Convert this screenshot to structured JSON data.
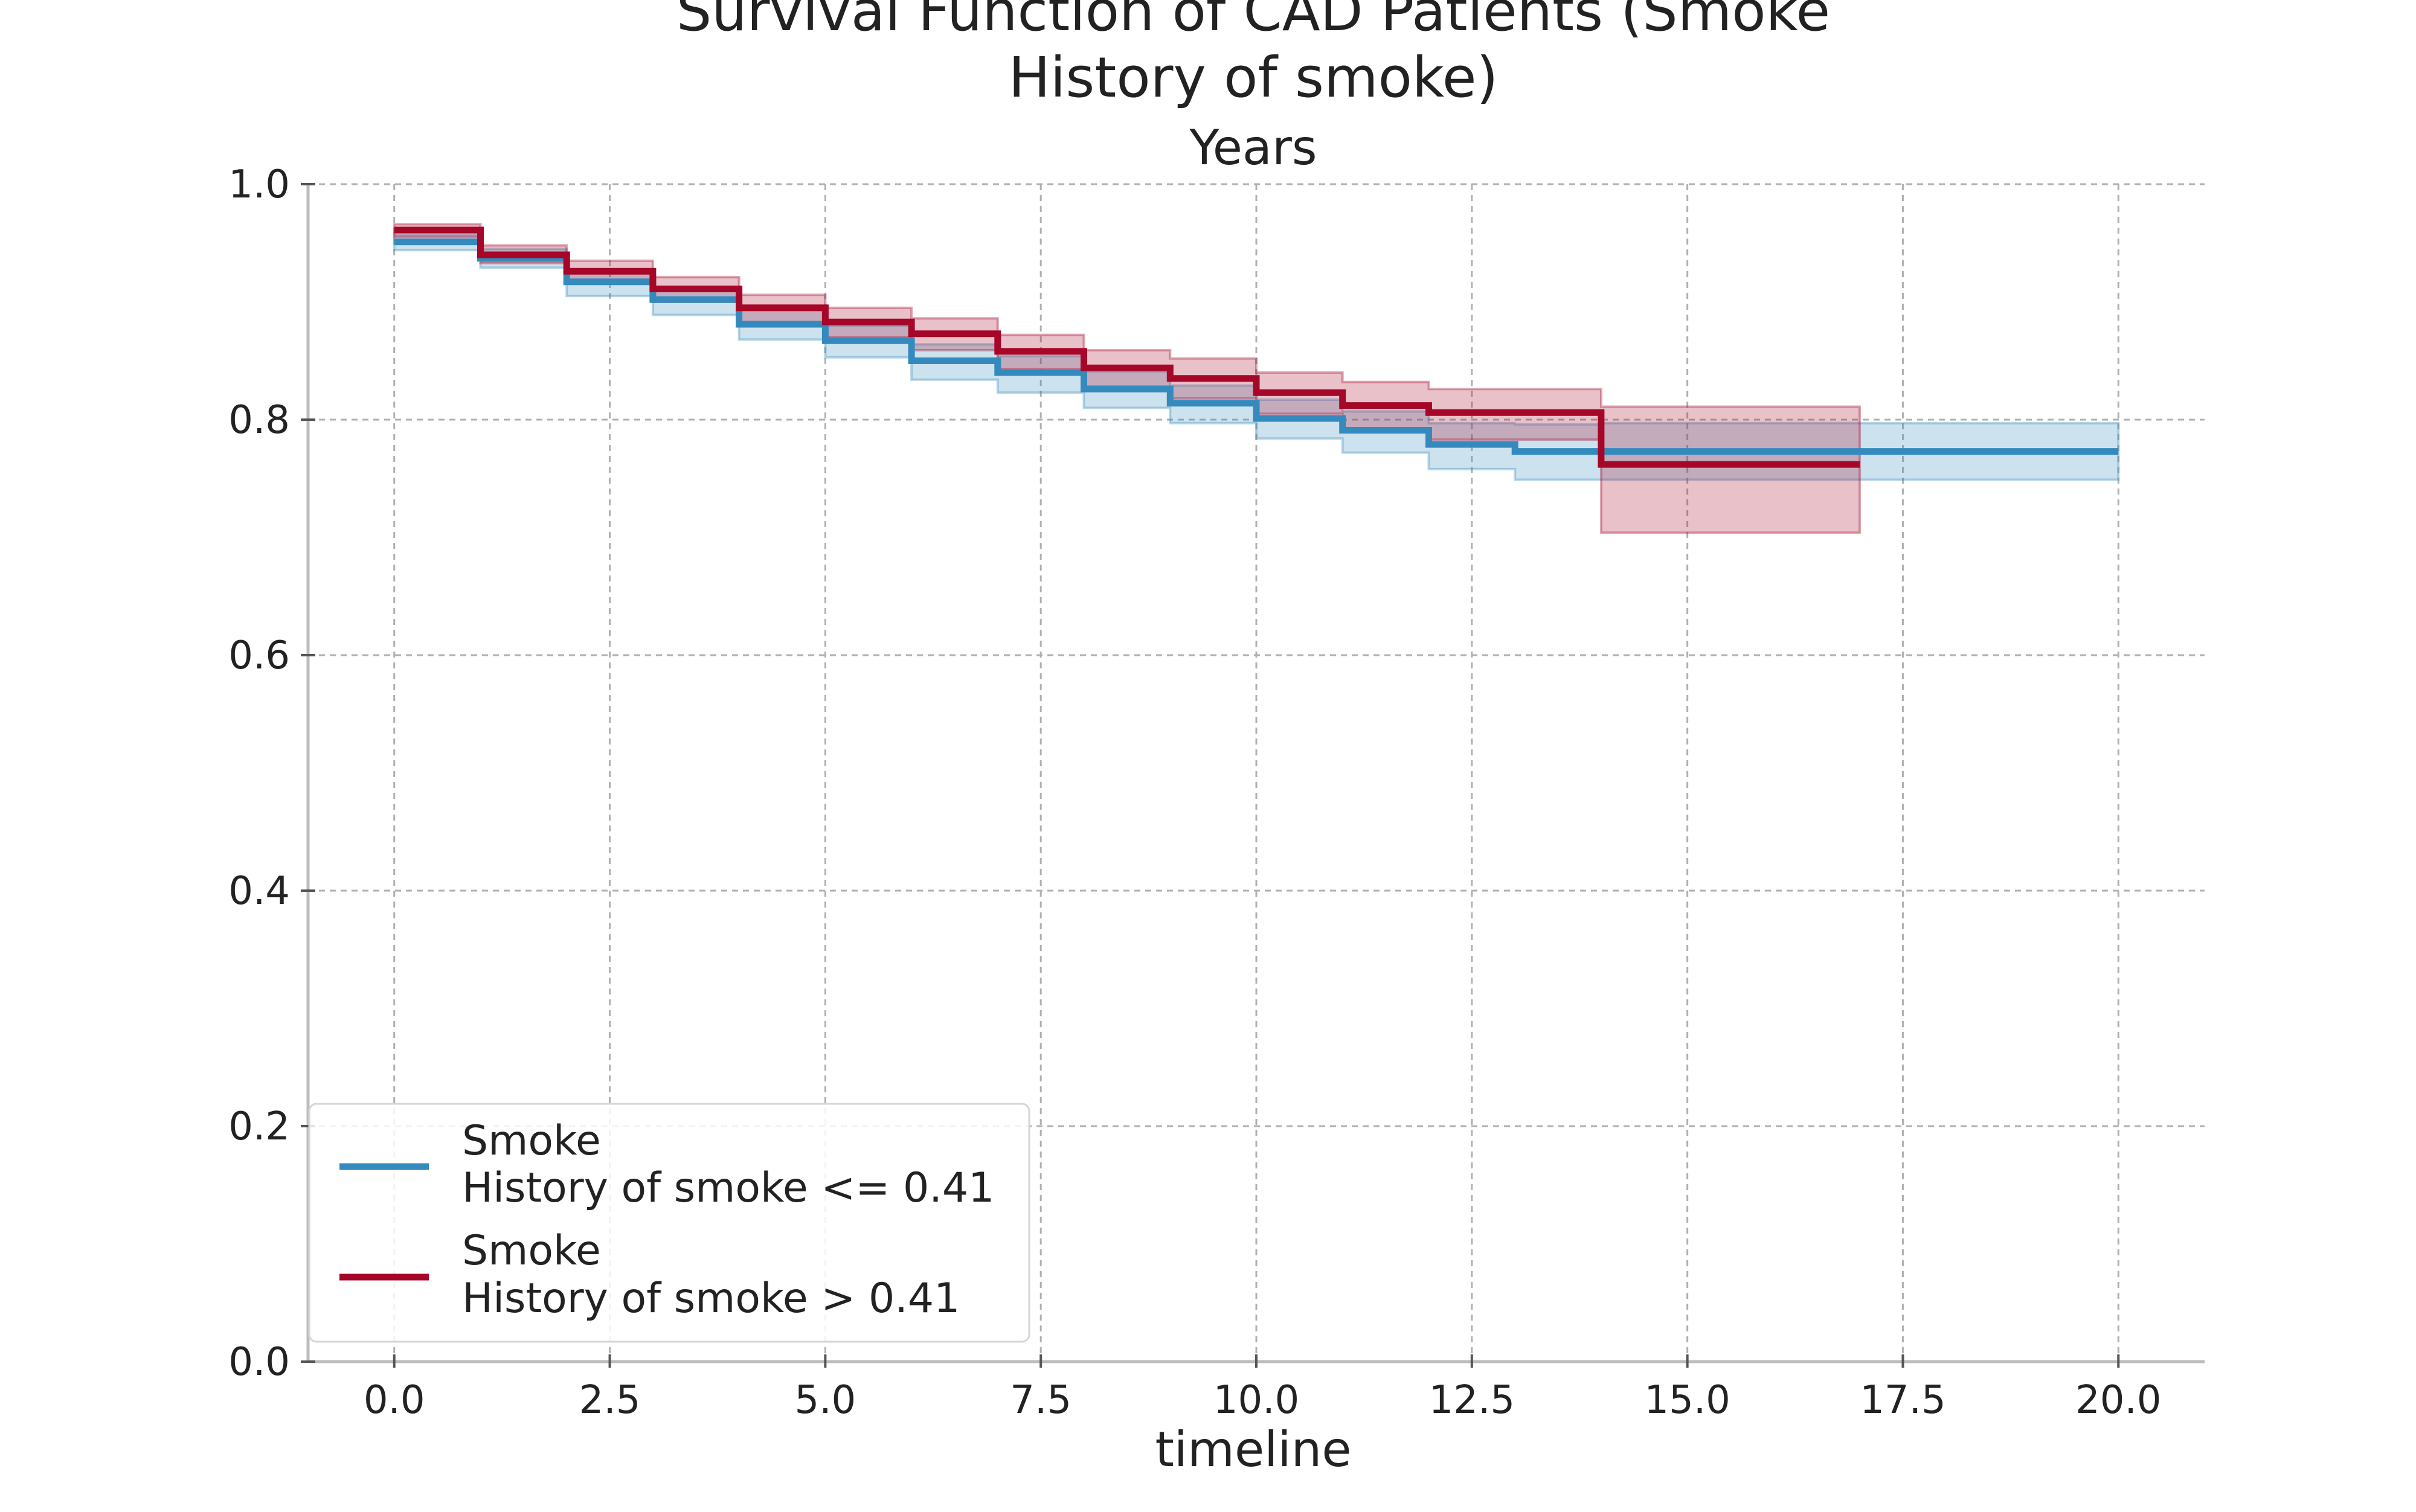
{
  "chart_data": {
    "type": "line",
    "title_lines": [
      "Survival Function of CAD Patients (Smoke",
      "History of smoke)"
    ],
    "subtitle": "Years",
    "xlabel": "timeline",
    "ylabel": "",
    "xlim": [
      -1.0,
      21.0
    ],
    "ylim": [
      0.0,
      1.0
    ],
    "xticks": [
      0.0,
      2.5,
      5.0,
      7.5,
      10.0,
      12.5,
      15.0,
      17.5,
      20.0
    ],
    "xtick_labels": [
      "0.0",
      "2.5",
      "5.0",
      "7.5",
      "10.0",
      "12.5",
      "15.0",
      "17.5",
      "20.0"
    ],
    "yticks": [
      0.0,
      0.2,
      0.4,
      0.6,
      0.8,
      1.0
    ],
    "ytick_labels": [
      "0.0",
      "0.2",
      "0.4",
      "0.6",
      "0.8",
      "1.0"
    ],
    "grid": true,
    "legend_position": "lower-left",
    "series": [
      {
        "name_lines": [
          "Smoke",
          "History of smoke <= 0.41"
        ],
        "color": "#348abd",
        "x": [
          0,
          1,
          2,
          3,
          4,
          5,
          6,
          7,
          8,
          9,
          10,
          11,
          12,
          13,
          14,
          20
        ],
        "y": [
          0.951,
          0.937,
          0.917,
          0.902,
          0.881,
          0.867,
          0.85,
          0.84,
          0.826,
          0.814,
          0.801,
          0.791,
          0.779,
          0.773,
          0.773,
          0.773
        ],
        "ci_lower": [
          0.944,
          0.929,
          0.905,
          0.889,
          0.868,
          0.853,
          0.834,
          0.823,
          0.81,
          0.797,
          0.784,
          0.772,
          0.758,
          0.749,
          0.749,
          0.749
        ],
        "ci_upper": [
          0.957,
          0.945,
          0.927,
          0.913,
          0.893,
          0.88,
          0.864,
          0.854,
          0.841,
          0.829,
          0.817,
          0.807,
          0.797,
          0.796,
          0.797,
          0.797
        ]
      },
      {
        "name_lines": [
          "Smoke",
          "History of smoke > 0.41"
        ],
        "color": "#a60628",
        "x": [
          0,
          1,
          2,
          3,
          4,
          5,
          6,
          7,
          8,
          9,
          10,
          11,
          12,
          13,
          14,
          17
        ],
        "y": [
          0.961,
          0.94,
          0.926,
          0.911,
          0.895,
          0.883,
          0.873,
          0.858,
          0.844,
          0.835,
          0.823,
          0.812,
          0.806,
          0.806,
          0.762,
          0.762
        ],
        "ci_lower": [
          0.955,
          0.933,
          0.917,
          0.9,
          0.883,
          0.87,
          0.859,
          0.843,
          0.828,
          0.818,
          0.805,
          0.791,
          0.783,
          0.783,
          0.704,
          0.704
        ],
        "ci_upper": [
          0.966,
          0.948,
          0.935,
          0.921,
          0.906,
          0.895,
          0.886,
          0.872,
          0.859,
          0.852,
          0.84,
          0.832,
          0.826,
          0.826,
          0.811,
          0.811
        ]
      }
    ]
  }
}
